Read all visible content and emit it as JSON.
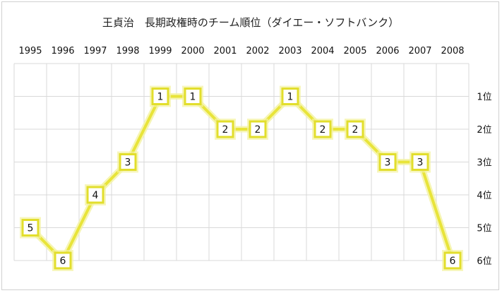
{
  "chart_data": {
    "type": "line",
    "title": "王貞治　長期政権時のチーム順位（ダイエー・ソフトバンク）",
    "categories": [
      "1995",
      "1996",
      "1997",
      "1998",
      "1999",
      "2000",
      "2001",
      "2002",
      "2003",
      "2004",
      "2005",
      "2006",
      "2007",
      "2008"
    ],
    "series": [
      {
        "values": [
          5,
          6,
          4,
          3,
          1,
          1,
          2,
          2,
          1,
          2,
          2,
          3,
          3,
          6
        ]
      }
    ],
    "y_ticks": [
      "1位",
      "2位",
      "3位",
      "4位",
      "5位",
      "6位"
    ],
    "ylim": [
      6,
      0
    ],
    "y_inverted": true,
    "grid": true,
    "legend": "none",
    "colors": {
      "line": "#e8e43a",
      "glow": "#f4f2a0",
      "marker_border": "#e2de2c",
      "marker_fill": "#ffffff",
      "grid": "#d9d9d9"
    }
  }
}
